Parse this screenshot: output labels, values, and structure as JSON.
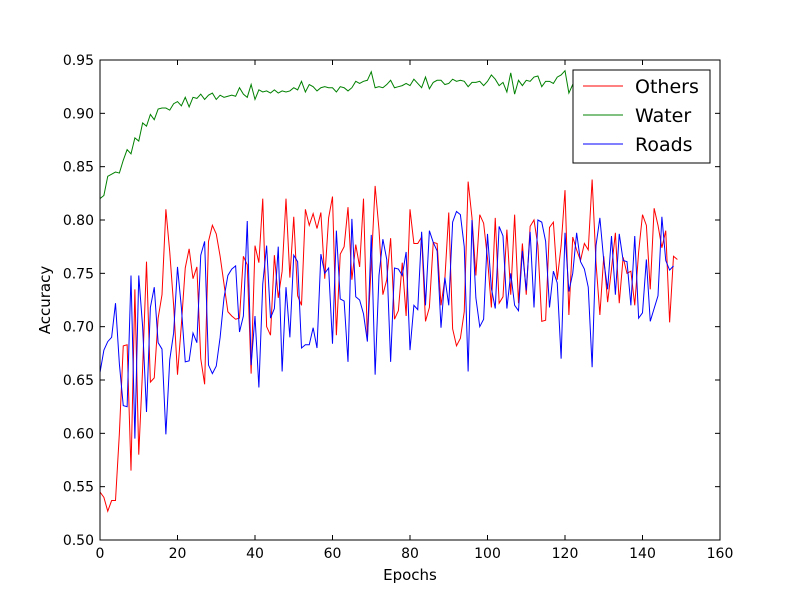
{
  "chart_data": {
    "type": "line",
    "title": "",
    "xlabel": "Epochs",
    "ylabel": "Accuracy",
    "xlim": [
      0,
      160
    ],
    "ylim": [
      0.5,
      0.95
    ],
    "xticks": [
      "0",
      "20",
      "40",
      "60",
      "80",
      "100",
      "120",
      "140",
      "160"
    ],
    "yticks": [
      "0.50",
      "0.55",
      "0.60",
      "0.65",
      "0.70",
      "0.75",
      "0.80",
      "0.85",
      "0.90",
      "0.95"
    ],
    "grid": false,
    "legend_position": "top-right",
    "series": [
      {
        "name": "Others",
        "color": "#ff0000",
        "values": [
          0.545,
          0.54,
          0.527,
          0.537,
          0.537,
          0.6,
          0.682,
          0.683,
          0.565,
          0.735,
          0.58,
          0.661,
          0.761,
          0.648,
          0.652,
          0.708,
          0.73,
          0.81,
          0.77,
          0.72,
          0.655,
          0.702,
          0.755,
          0.773,
          0.745,
          0.756,
          0.67,
          0.646,
          0.78,
          0.795,
          0.787,
          0.766,
          0.74,
          0.714,
          0.71,
          0.707,
          0.708,
          0.766,
          0.758,
          0.656,
          0.776,
          0.76,
          0.82,
          0.7,
          0.692,
          0.767,
          0.727,
          0.752,
          0.82,
          0.746,
          0.803,
          0.729,
          0.72,
          0.81,
          0.795,
          0.806,
          0.792,
          0.807,
          0.745,
          0.802,
          0.822,
          0.692,
          0.768,
          0.775,
          0.812,
          0.744,
          0.777,
          0.756,
          0.82,
          0.688,
          0.758,
          0.832,
          0.791,
          0.73,
          0.744,
          0.783,
          0.707,
          0.715,
          0.76,
          0.71,
          0.81,
          0.778,
          0.778,
          0.784,
          0.705,
          0.718,
          0.779,
          0.778,
          0.72,
          0.745,
          0.807,
          0.698,
          0.682,
          0.689,
          0.714,
          0.836,
          0.802,
          0.748,
          0.805,
          0.797,
          0.764,
          0.718,
          0.802,
          0.722,
          0.728,
          0.791,
          0.73,
          0.805,
          0.722,
          0.778,
          0.73,
          0.794,
          0.8,
          0.776,
          0.705,
          0.706,
          0.793,
          0.798,
          0.744,
          0.776,
          0.828,
          0.711,
          0.784,
          0.772,
          0.762,
          0.778,
          0.772,
          0.838,
          0.76,
          0.711,
          0.766,
          0.723,
          0.754,
          0.788,
          0.722,
          0.765,
          0.75,
          0.752,
          0.72,
          0.77,
          0.805,
          0.795,
          0.735,
          0.811,
          0.795,
          0.774,
          0.79,
          0.704,
          0.766,
          0.763
        ]
      },
      {
        "name": "Water",
        "color": "#008000",
        "values": [
          0.82,
          0.823,
          0.841,
          0.843,
          0.845,
          0.844,
          0.856,
          0.866,
          0.862,
          0.877,
          0.874,
          0.891,
          0.888,
          0.899,
          0.894,
          0.904,
          0.905,
          0.905,
          0.903,
          0.909,
          0.911,
          0.907,
          0.915,
          0.906,
          0.915,
          0.914,
          0.918,
          0.913,
          0.917,
          0.919,
          0.913,
          0.917,
          0.915,
          0.916,
          0.917,
          0.916,
          0.924,
          0.918,
          0.915,
          0.927,
          0.913,
          0.922,
          0.92,
          0.921,
          0.919,
          0.922,
          0.919,
          0.921,
          0.92,
          0.921,
          0.924,
          0.922,
          0.93,
          0.92,
          0.927,
          0.925,
          0.921,
          0.924,
          0.925,
          0.924,
          0.924,
          0.92,
          0.925,
          0.924,
          0.921,
          0.924,
          0.93,
          0.928,
          0.93,
          0.931,
          0.939,
          0.924,
          0.925,
          0.924,
          0.927,
          0.931,
          0.924,
          0.925,
          0.926,
          0.928,
          0.926,
          0.932,
          0.928,
          0.924,
          0.934,
          0.923,
          0.929,
          0.931,
          0.931,
          0.927,
          0.928,
          0.932,
          0.93,
          0.931,
          0.93,
          0.925,
          0.929,
          0.929,
          0.93,
          0.926,
          0.93,
          0.936,
          0.932,
          0.926,
          0.929,
          0.92,
          0.938,
          0.918,
          0.931,
          0.926,
          0.931,
          0.93,
          0.934,
          0.935,
          0.925,
          0.93,
          0.93,
          0.928,
          0.934,
          0.936,
          0.94,
          0.919,
          0.927,
          0.934,
          0.93,
          0.931,
          0.931,
          0.933,
          0.928,
          0.924,
          0.935,
          0.93,
          0.932,
          0.937,
          0.931,
          0.934,
          0.93,
          0.932,
          0.931,
          0.931,
          0.929,
          0.93,
          0.933,
          0.931,
          0.93,
          0.931,
          0.93,
          0.932,
          0.931,
          0.93
        ]
      },
      {
        "name": "Roads",
        "color": "#0000ff",
        "values": [
          0.657,
          0.678,
          0.686,
          0.69,
          0.722,
          0.665,
          0.626,
          0.625,
          0.748,
          0.595,
          0.748,
          0.7,
          0.62,
          0.718,
          0.737,
          0.685,
          0.679,
          0.599,
          0.669,
          0.694,
          0.756,
          0.718,
          0.667,
          0.668,
          0.694,
          0.685,
          0.767,
          0.78,
          0.664,
          0.656,
          0.663,
          0.69,
          0.727,
          0.748,
          0.754,
          0.757,
          0.695,
          0.71,
          0.799,
          0.664,
          0.71,
          0.643,
          0.74,
          0.776,
          0.708,
          0.717,
          0.775,
          0.658,
          0.737,
          0.69,
          0.767,
          0.761,
          0.68,
          0.683,
          0.683,
          0.699,
          0.68,
          0.768,
          0.75,
          0.755,
          0.684,
          0.79,
          0.726,
          0.724,
          0.667,
          0.801,
          0.728,
          0.725,
          0.712,
          0.686,
          0.786,
          0.655,
          0.748,
          0.782,
          0.763,
          0.667,
          0.755,
          0.754,
          0.748,
          0.77,
          0.678,
          0.72,
          0.716,
          0.789,
          0.72,
          0.79,
          0.779,
          0.771,
          0.699,
          0.746,
          0.72,
          0.798,
          0.808,
          0.805,
          0.775,
          0.658,
          0.8,
          0.727,
          0.7,
          0.707,
          0.787,
          0.736,
          0.717,
          0.794,
          0.785,
          0.717,
          0.75,
          0.72,
          0.715,
          0.771,
          0.734,
          0.789,
          0.718,
          0.8,
          0.798,
          0.78,
          0.718,
          0.752,
          0.741,
          0.67,
          0.788,
          0.733,
          0.75,
          0.788,
          0.761,
          0.754,
          0.737,
          0.662,
          0.776,
          0.802,
          0.762,
          0.735,
          0.785,
          0.73,
          0.787,
          0.762,
          0.761,
          0.72,
          0.785,
          0.708,
          0.713,
          0.763,
          0.705,
          0.717,
          0.729,
          0.803,
          0.762,
          0.753,
          0.757
        ]
      }
    ]
  }
}
